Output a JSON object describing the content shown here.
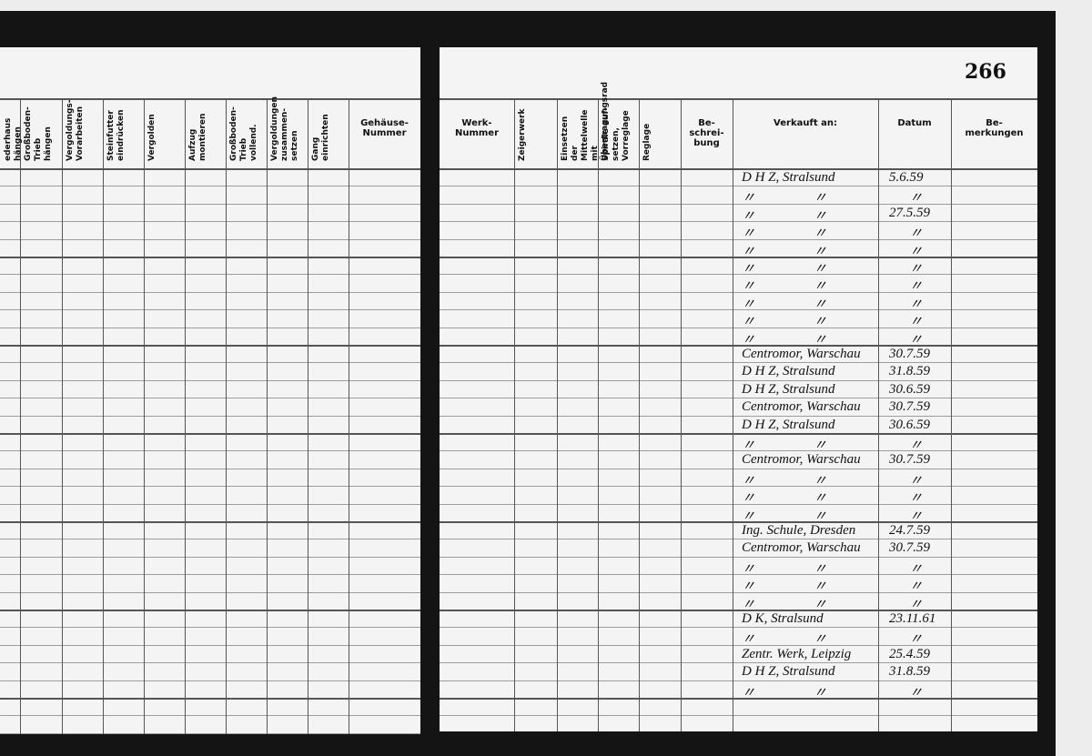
{
  "page_number": "266",
  "left_headers": [
    "ederhaus\nhängen",
    "Großboden-\nTrieb hängen",
    "Vergoldungs-\nVorarbeiten",
    "Steinfutter\neindrücken",
    "Vergolden",
    "Aufzug\nmontieren",
    "Großboden-\nTrieb vollend.",
    "Vergoldungen\nzusammen-\nsetzen",
    "Gang\neinrichten",
    "Gehäuse-\nNummer"
  ],
  "right_headers": [
    "Werk-\nNummer",
    "Zeigerwerk",
    "Einsetzen der\nMittelwelle mit\nÜbertragungsrad",
    "Spirale auf-\nsetzen,\nVorreglage",
    "Reglage",
    "Be-\nschrei-\nbung",
    "Verkauft an:",
    "Datum",
    "Be-\nmerkungen"
  ],
  "rows": [
    {
      "sold_to": "D H Z, Stralsund",
      "date": "5.6.59"
    },
    {
      "sold_to": "〃 〃",
      "date": "〃"
    },
    {
      "sold_to": "〃 〃",
      "date": "27.5.59"
    },
    {
      "sold_to": "〃 〃",
      "date": "〃"
    },
    {
      "sold_to": "〃 〃",
      "date": "〃"
    },
    {
      "sold_to": "〃 〃",
      "date": "〃"
    },
    {
      "sold_to": "〃 〃",
      "date": "〃"
    },
    {
      "sold_to": "〃 〃",
      "date": "〃"
    },
    {
      "sold_to": "〃 〃",
      "date": "〃"
    },
    {
      "sold_to": "〃 〃",
      "date": "〃"
    },
    {
      "sold_to": "Centromor, Warschau",
      "date": "30.7.59"
    },
    {
      "sold_to": "D H Z, Stralsund",
      "date": "31.8.59"
    },
    {
      "sold_to": "D H Z, Stralsund",
      "date": "30.6.59"
    },
    {
      "sold_to": "Centromor, Warschau",
      "date": "30.7.59"
    },
    {
      "sold_to": "D H Z, Stralsund",
      "date": "30.6.59"
    },
    {
      "sold_to": "〃 〃",
      "date": "〃"
    },
    {
      "sold_to": "Centromor, Warschau",
      "date": "30.7.59"
    },
    {
      "sold_to": "〃 〃",
      "date": "〃"
    },
    {
      "sold_to": "〃 〃",
      "date": "〃"
    },
    {
      "sold_to": "〃 〃",
      "date": "〃"
    },
    {
      "sold_to": "Ing. Schule, Dresden",
      "date": "24.7.59"
    },
    {
      "sold_to": "Centromor, Warschau",
      "date": "30.7.59"
    },
    {
      "sold_to": "〃 〃",
      "date": "〃"
    },
    {
      "sold_to": "〃 〃",
      "date": "〃"
    },
    {
      "sold_to": "〃 〃",
      "date": "〃"
    },
    {
      "sold_to": "D K, Stralsund",
      "date": "23.11.61"
    },
    {
      "sold_to": "〃 〃",
      "date": "〃"
    },
    {
      "sold_to": "Zentr. Werk, Leipzig",
      "date": "25.4.59"
    },
    {
      "sold_to": "D H Z, Stralsund",
      "date": "31.8.59"
    },
    {
      "sold_to": "〃 〃",
      "date": "〃"
    }
  ]
}
